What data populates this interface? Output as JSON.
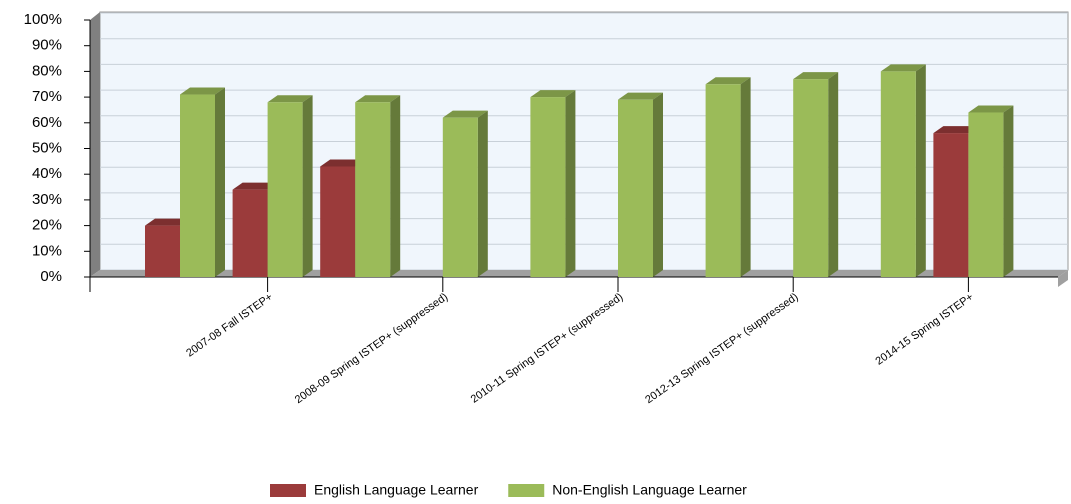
{
  "chart_data": {
    "type": "bar3d",
    "categories": [
      null,
      "2007-08 Fall ISTEP+",
      null,
      "2008-09 Spring ISTEP+ (suppressed)",
      null,
      "2010-11 Spring ISTEP+ (suppressed)",
      null,
      "2012-13 Spring ISTEP+ (suppressed)",
      null,
      "2014-15 Spring ISTEP+"
    ],
    "series": [
      {
        "name": "English Language Learner",
        "color": "#9b3b3b",
        "values": [
          20,
          34,
          43,
          null,
          null,
          null,
          null,
          null,
          null,
          56
        ]
      },
      {
        "name": "Non-English Language Learner",
        "color": "#9bbb59",
        "values": [
          71,
          68,
          68,
          62,
          70,
          69,
          75,
          77,
          80,
          64
        ]
      }
    ],
    "ylim": [
      0,
      100
    ],
    "yticks": [
      {
        "value": 0,
        "label": "0%"
      },
      {
        "value": 10,
        "label": "10%"
      },
      {
        "value": 20,
        "label": "20%"
      },
      {
        "value": 30,
        "label": "30%"
      },
      {
        "value": 40,
        "label": "40%"
      },
      {
        "value": 50,
        "label": "50%"
      },
      {
        "value": 60,
        "label": "60%"
      },
      {
        "value": 70,
        "label": "70%"
      },
      {
        "value": 80,
        "label": "80%"
      },
      {
        "value": 90,
        "label": "90%"
      },
      {
        "value": 100,
        "label": "100%"
      }
    ],
    "grid": true,
    "legend": "bottom"
  }
}
